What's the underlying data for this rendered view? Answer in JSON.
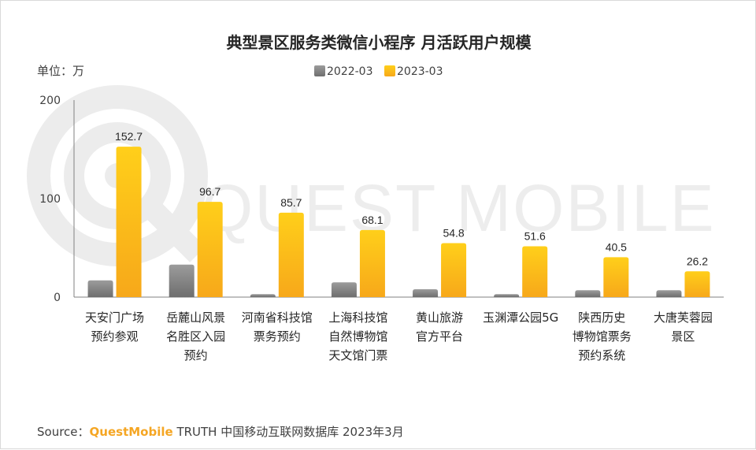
{
  "chart_data": {
    "type": "bar",
    "title": "典型景区服务类微信小程序 月活跃用户规模",
    "unit_label": "单位：万",
    "categories": [
      [
        "天安门广场",
        "预约参观"
      ],
      [
        "岳麓山风景",
        "名胜区入园",
        "预约"
      ],
      [
        "河南省科技馆",
        "票务预约"
      ],
      [
        "上海科技馆",
        "自然博物馆",
        "天文馆门票"
      ],
      [
        "黄山旅游",
        "官方平台"
      ],
      [
        "玉渊潭公园5G"
      ],
      [
        "陕西历史",
        "博物馆票务",
        "预约系统"
      ],
      [
        "大唐芙蓉园",
        "景区"
      ]
    ],
    "series": [
      {
        "name": "2022-03",
        "values": [
          17,
          33,
          3,
          15,
          8,
          3,
          7,
          7
        ],
        "color": "#8c8c8c",
        "show_labels": false
      },
      {
        "name": "2023-03",
        "values": [
          152.7,
          96.7,
          85.7,
          68.1,
          54.8,
          51.6,
          40.5,
          26.2
        ],
        "color": "#ffc000",
        "show_labels": true
      }
    ],
    "ylim": [
      0,
      200
    ],
    "yticks": [
      0,
      100,
      200
    ],
    "grid": false,
    "legend": "top-center"
  },
  "watermark": "QUEST MOBILE",
  "source": {
    "prefix": "Source：",
    "brand": "QuestMobile",
    "text": " TRUTH 中国移动互联网数据库 2023年3月"
  },
  "colors": {
    "brand": "#f5a623",
    "axis": "#808080",
    "text": "#262626"
  }
}
